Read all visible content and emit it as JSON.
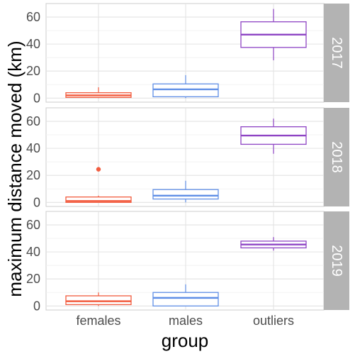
{
  "chart_data": {
    "type": "boxplot",
    "xlabel": "group",
    "ylabel": "maximum distance moved (km)",
    "categories": [
      "females",
      "males",
      "outliers"
    ],
    "colors": {
      "females": "#f25c3f",
      "males": "#5f8ee6",
      "outliers": "#8e44c4"
    },
    "ylim": [
      -3,
      70
    ],
    "yticks": [
      0,
      20,
      40,
      60
    ],
    "grid": true,
    "panels": [
      {
        "label": "2017",
        "boxes": [
          {
            "group": "females",
            "min": 0,
            "q1": 0.5,
            "median": 2,
            "q3": 4,
            "max": 8,
            "outliers": []
          },
          {
            "group": "males",
            "min": 0,
            "q1": 1,
            "median": 6.5,
            "q3": 10.5,
            "max": 17,
            "outliers": []
          },
          {
            "group": "outliers",
            "min": 28,
            "q1": 37.5,
            "median": 47,
            "q3": 56.5,
            "max": 66,
            "outliers": []
          }
        ]
      },
      {
        "label": "2018",
        "boxes": [
          {
            "group": "females",
            "min": 0,
            "q1": 0,
            "median": 1,
            "q3": 4,
            "max": 5,
            "outliers": [
              24.5
            ]
          },
          {
            "group": "males",
            "min": 0,
            "q1": 2.5,
            "median": 5,
            "q3": 9.5,
            "max": 16,
            "outliers": []
          },
          {
            "group": "outliers",
            "min": 36,
            "q1": 43,
            "median": 49.5,
            "q3": 56,
            "max": 62,
            "outliers": []
          }
        ]
      },
      {
        "label": "2019",
        "boxes": [
          {
            "group": "females",
            "min": 0,
            "q1": 1,
            "median": 3.5,
            "q3": 7.5,
            "max": 10,
            "outliers": []
          },
          {
            "group": "males",
            "min": 0,
            "q1": 0,
            "median": 6,
            "q3": 10,
            "max": 16,
            "outliers": []
          },
          {
            "group": "outliers",
            "min": 41,
            "q1": 43,
            "median": 45.5,
            "q3": 48,
            "max": 51,
            "outliers": []
          }
        ]
      }
    ]
  }
}
